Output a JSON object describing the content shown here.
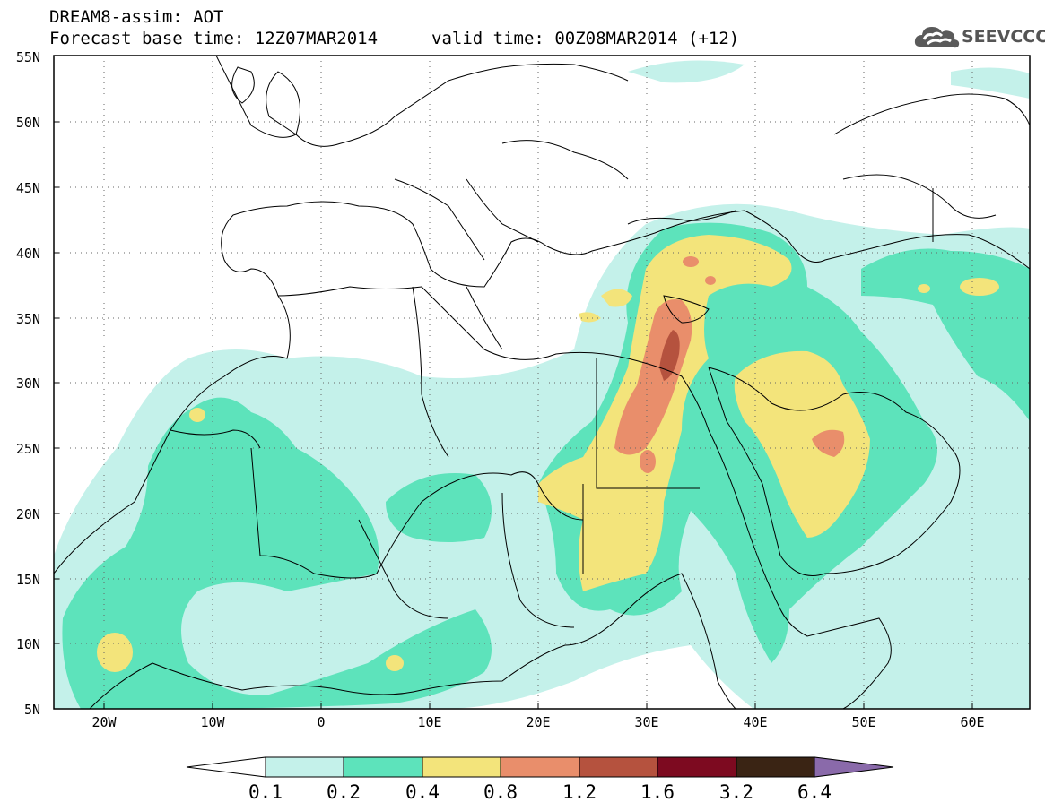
{
  "header": {
    "line1": "DREAM8-assim: AOT",
    "base_time": "Forecast base time: 12Z07MAR2014",
    "valid_time": "valid time: 00Z08MAR2014 (+12)"
  },
  "logo": {
    "text": "SEEVCCC",
    "icon": "cloud-icon"
  },
  "axes": {
    "lat_labels": [
      "55N",
      "50N",
      "45N",
      "40N",
      "35N",
      "30N",
      "25N",
      "20N",
      "15N",
      "10N",
      "5N"
    ],
    "lon_labels": [
      "20W",
      "10W",
      "0",
      "10E",
      "20E",
      "30E",
      "40E",
      "50E",
      "60E"
    ]
  },
  "colorbar": {
    "labels": [
      "0.1",
      "0.2",
      "0.4",
      "0.8",
      "1.2",
      "1.6",
      "3.2",
      "6.4"
    ],
    "colors": [
      "#ffffff",
      "#c4f1ea",
      "#5de3bb",
      "#f3e47b",
      "#e98e6b",
      "#b5523e",
      "#7d0a20",
      "#3a2414",
      "#8a6aaa"
    ]
  },
  "variable": "AOT"
}
